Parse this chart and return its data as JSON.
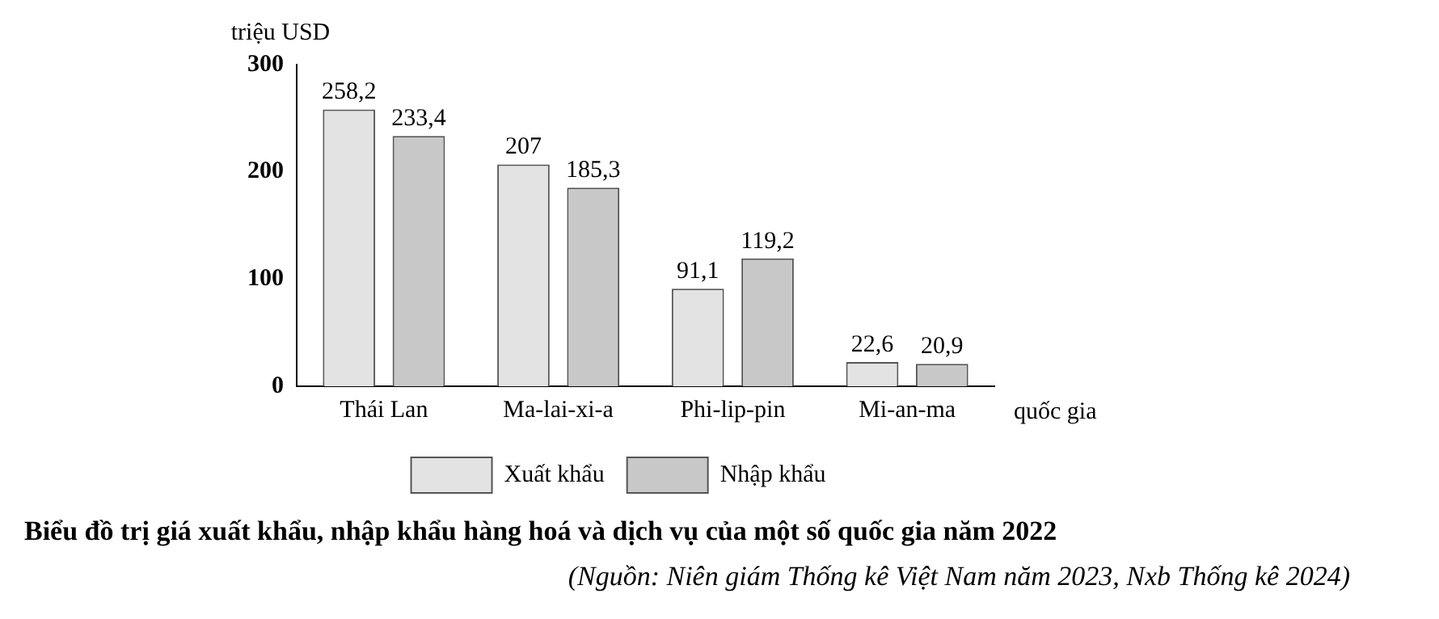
{
  "chart_data": {
    "type": "bar",
    "title": "Biểu đồ trị giá xuất khẩu, nhập khẩu hàng hoá và dịch vụ của một số quốc gia năm 2022",
    "xlabel": "quốc gia",
    "ylabel": "triệu USD",
    "annotations": [
      "(Nguồn: Niên giám Thống kê Việt Nam năm 2023, Nxb Thống kê 2024)"
    ],
    "categories": [
      "Thái Lan",
      "Ma-lai-xi-a",
      "Phi-lip-pin",
      "Mi-an-ma"
    ],
    "series": [
      {
        "name": "Xuất khẩu",
        "color": "#e3e3e3",
        "values": [
          258.2,
          207,
          91.1,
          22.6
        ],
        "value_labels": [
          "258,2",
          "207",
          "91,1",
          "22,6"
        ]
      },
      {
        "name": "Nhập khẩu",
        "color": "#c8c8c8",
        "values": [
          233.4,
          185.3,
          119.2,
          20.9
        ],
        "value_labels": [
          "233,4",
          "185,3",
          "119,2",
          "20,9"
        ]
      }
    ],
    "ylim": [
      0,
      300
    ],
    "yticks": [
      0,
      100,
      200,
      300
    ],
    "grid": false,
    "legend": "bottom"
  }
}
